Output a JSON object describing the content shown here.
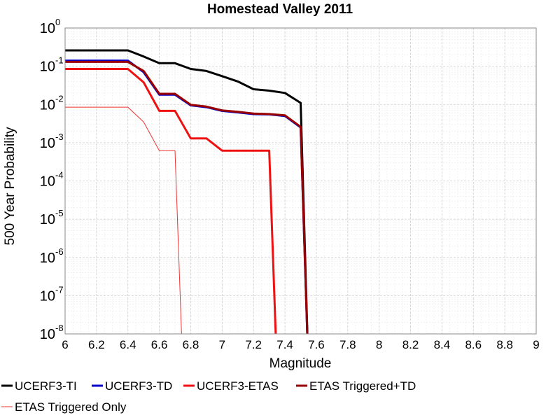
{
  "chart_data": {
    "type": "line",
    "title": "Homestead Valley 2011",
    "xlabel": "Magnitude",
    "ylabel": "500 Year Probability",
    "xlim": [
      6,
      9
    ],
    "ylim": [
      1e-08,
      1
    ],
    "yscale": "log",
    "grid": true,
    "legend_position": "bottom",
    "x_ticks": [
      "6",
      "6.2",
      "6.4",
      "6.6",
      "6.8",
      "7",
      "7.2",
      "7.4",
      "7.6",
      "7.8",
      "8",
      "8.2",
      "8.4",
      "8.6",
      "8.8",
      "9"
    ],
    "y_ticks": [
      {
        "base": "10",
        "exp": "0"
      },
      {
        "base": "10",
        "exp": "-1"
      },
      {
        "base": "10",
        "exp": "-2"
      },
      {
        "base": "10",
        "exp": "-3"
      },
      {
        "base": "10",
        "exp": "-4"
      },
      {
        "base": "10",
        "exp": "-5"
      },
      {
        "base": "10",
        "exp": "-6"
      },
      {
        "base": "10",
        "exp": "-7"
      },
      {
        "base": "10",
        "exp": "-8"
      }
    ],
    "series": [
      {
        "name": "UCERF3-TI",
        "color": "#000000",
        "width": 3,
        "x": [
          6.0,
          6.4,
          6.5,
          6.6,
          6.7,
          6.8,
          6.9,
          7.0,
          7.1,
          7.2,
          7.3,
          7.4,
          7.5,
          7.55
        ],
        "y": [
          0.26,
          0.26,
          0.18,
          0.12,
          0.12,
          0.085,
          0.075,
          0.055,
          0.04,
          0.025,
          0.023,
          0.02,
          0.011,
          1e-09
        ]
      },
      {
        "name": "UCERF3-TD",
        "color": "#0000cc",
        "width": 3,
        "x": [
          6.0,
          6.4,
          6.5,
          6.6,
          6.7,
          6.8,
          6.9,
          7.0,
          7.1,
          7.2,
          7.3,
          7.4,
          7.5,
          7.55
        ],
        "y": [
          0.14,
          0.14,
          0.07,
          0.018,
          0.018,
          0.0095,
          0.0085,
          0.0068,
          0.0062,
          0.0056,
          0.0055,
          0.005,
          0.0025,
          1e-09
        ]
      },
      {
        "name": "UCERF3-ETAS",
        "color": "#ee1111",
        "width": 3,
        "x": [
          6.0,
          6.4,
          6.5,
          6.6,
          6.7,
          6.8,
          6.9,
          7.0,
          7.1,
          7.3,
          7.35
        ],
        "y": [
          0.085,
          0.085,
          0.038,
          0.0068,
          0.0068,
          0.0013,
          0.0013,
          0.00062,
          0.00062,
          0.00062,
          1e-09
        ]
      },
      {
        "name": "ETAS Triggered+TD",
        "color": "#990000",
        "width": 3,
        "x": [
          6.0,
          6.4,
          6.5,
          6.6,
          6.7,
          6.8,
          6.9,
          7.0,
          7.1,
          7.2,
          7.3,
          7.4,
          7.5,
          7.55
        ],
        "y": [
          0.13,
          0.13,
          0.075,
          0.019,
          0.019,
          0.0098,
          0.0088,
          0.007,
          0.0064,
          0.0058,
          0.0056,
          0.0052,
          0.0026,
          1e-09
        ]
      },
      {
        "name": "ETAS Triggered Only",
        "color": "#ee3333",
        "width": 1,
        "x": [
          6.0,
          6.4,
          6.5,
          6.6,
          6.7,
          6.75
        ],
        "y": [
          0.0085,
          0.0085,
          0.0035,
          0.00062,
          0.00062,
          1e-09
        ]
      }
    ]
  }
}
